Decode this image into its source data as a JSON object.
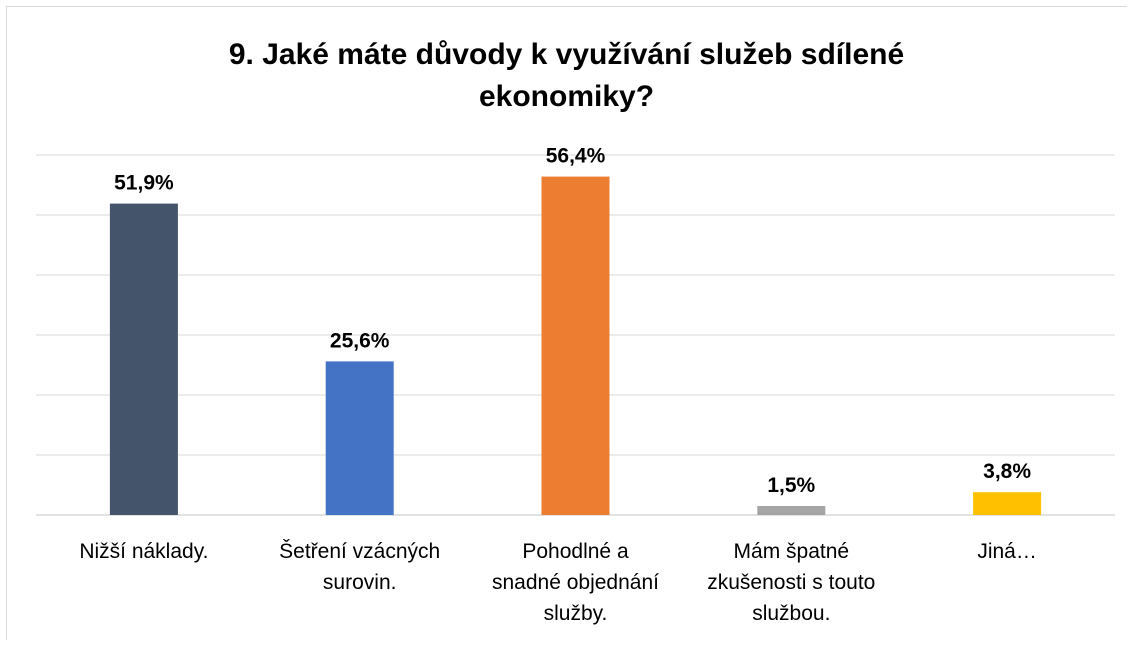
{
  "chart_data": {
    "type": "bar",
    "title_lines": [
      "9. Jaké máte důvody k využívání služeb sdílené",
      "ekonomiky?"
    ],
    "categories": [
      [
        "Nižší náklady."
      ],
      [
        "Šetření vzácných",
        "surovin."
      ],
      [
        "Pohodlné a",
        "snadné objednání",
        "služby."
      ],
      [
        "Mám špatné",
        "zkušenosti s touto",
        "službou."
      ],
      [
        "Jiná…"
      ]
    ],
    "values": [
      51.9,
      25.6,
      56.4,
      1.5,
      3.8
    ],
    "data_labels": [
      "51,9%",
      "25,6%",
      "56,4%",
      "1,5%",
      "3,8%"
    ],
    "colors": [
      "#44546a",
      "#4472c4",
      "#ed7d31",
      "#a5a5a5",
      "#ffc000"
    ],
    "ylim": [
      0,
      60
    ],
    "grid": true,
    "legend": "none"
  }
}
